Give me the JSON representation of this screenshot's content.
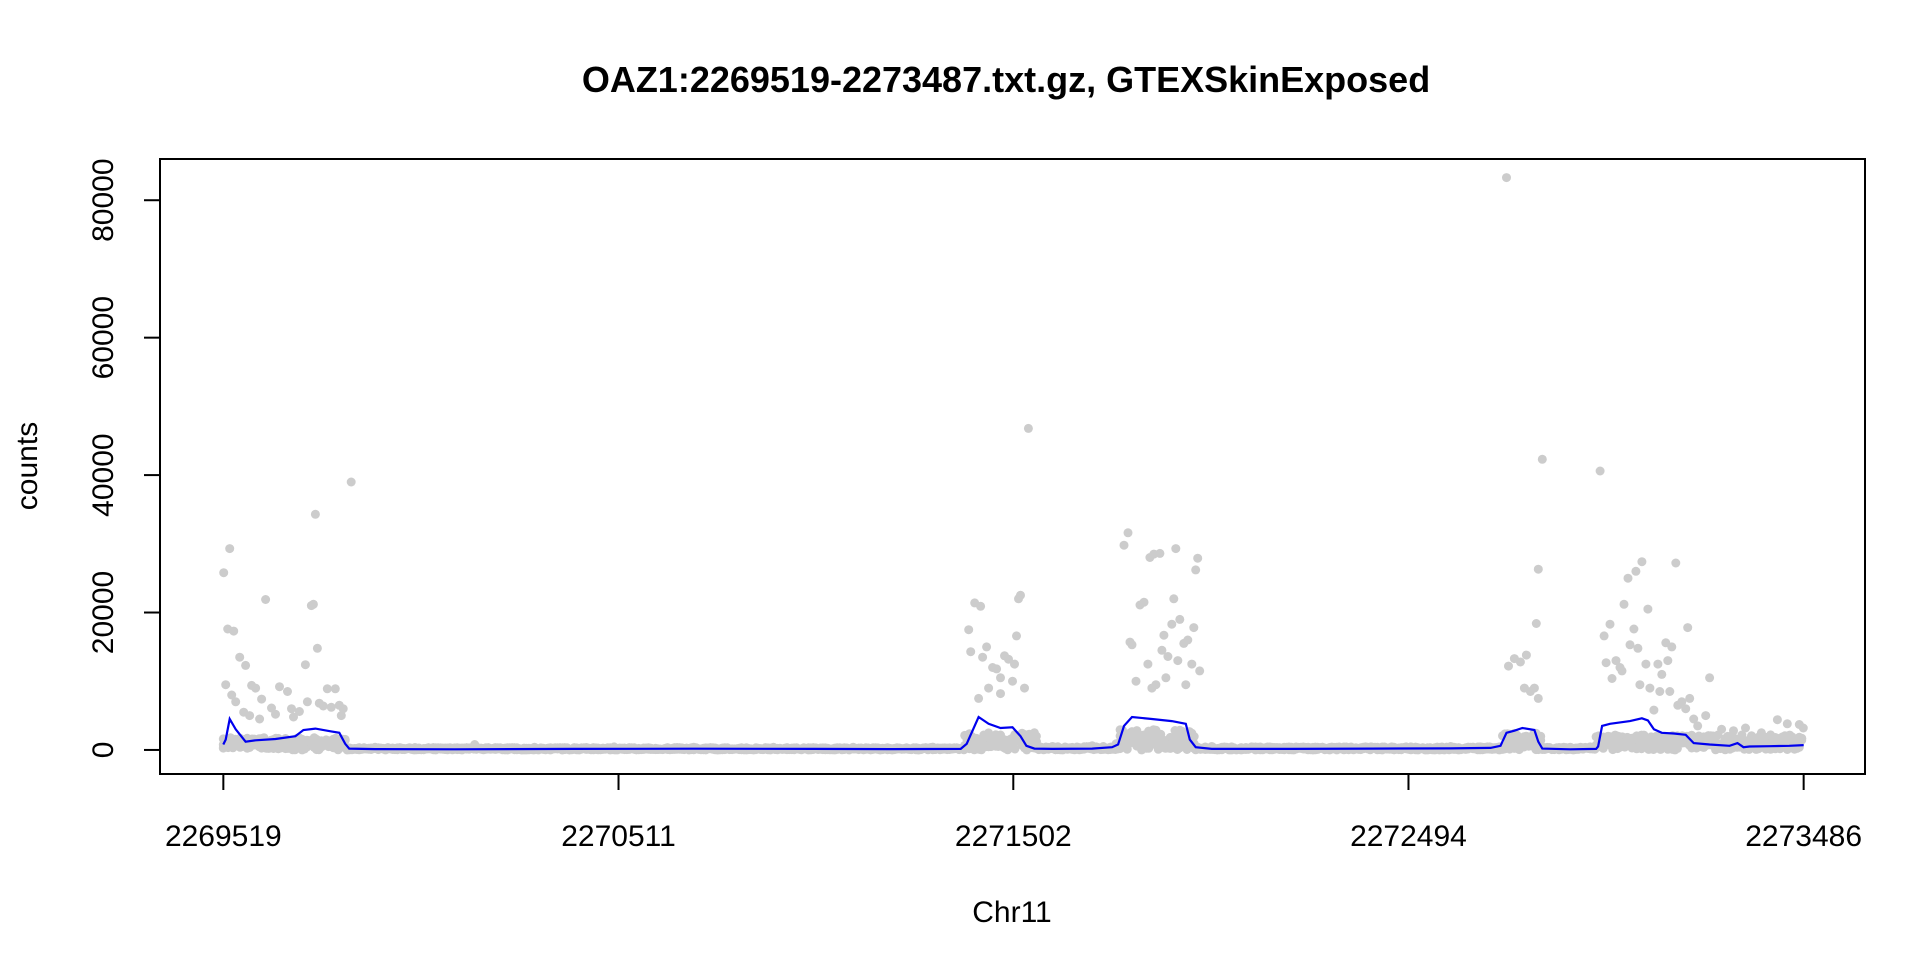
{
  "chart_data": {
    "type": "scatter",
    "title": "OAZ1:2269519-2273487.txt.gz, GTEXSkinExposed",
    "xlabel": "Chr11",
    "ylabel": "counts",
    "xlim": [
      2269360,
      2273640
    ],
    "ylim": [
      -3500,
      86000
    ],
    "x_ticks": [
      2269519,
      2270511,
      2271502,
      2272494,
      2273486
    ],
    "x_tick_labels": [
      "2269519",
      "2270511",
      "2271502",
      "2272494",
      "2273486"
    ],
    "y_ticks": [
      0,
      20000,
      40000,
      60000,
      80000
    ],
    "y_tick_labels": [
      "0",
      "20000",
      "40000",
      "60000",
      "80000"
    ],
    "grid": false,
    "colors": {
      "points": "#cccccc",
      "line": "#0000ee"
    },
    "series": [
      {
        "type": "scatter",
        "points": [
          [
            2269520,
            25800
          ],
          [
            2269535,
            29300
          ],
          [
            2269530,
            17600
          ],
          [
            2269545,
            17300
          ],
          [
            2269560,
            13500
          ],
          [
            2269575,
            12300
          ],
          [
            2269590,
            9400
          ],
          [
            2269600,
            9000
          ],
          [
            2269615,
            7400
          ],
          [
            2269625,
            21900
          ],
          [
            2269640,
            6100
          ],
          [
            2269660,
            9200
          ],
          [
            2269680,
            8500
          ],
          [
            2269695,
            4800
          ],
          [
            2269710,
            5600
          ],
          [
            2269725,
            12400
          ],
          [
            2269740,
            21000
          ],
          [
            2269745,
            21200
          ],
          [
            2269750,
            34300
          ],
          [
            2269755,
            14800
          ],
          [
            2269770,
            6400
          ],
          [
            2269780,
            8900
          ],
          [
            2269800,
            8900
          ],
          [
            2269810,
            6500
          ],
          [
            2269820,
            6000
          ],
          [
            2269840,
            39000
          ],
          [
            2269525,
            9500
          ],
          [
            2269540,
            8000
          ],
          [
            2269550,
            7000
          ],
          [
            2269570,
            5500
          ],
          [
            2269585,
            5000
          ],
          [
            2269610,
            4500
          ],
          [
            2269650,
            5200
          ],
          [
            2269690,
            6000
          ],
          [
            2269730,
            7000
          ],
          [
            2269760,
            6800
          ],
          [
            2269790,
            6200
          ],
          [
            2269815,
            5000
          ],
          [
            2269900,
            400
          ],
          [
            2270000,
            350
          ],
          [
            2270100,
            300
          ],
          [
            2270150,
            800
          ],
          [
            2270300,
            400
          ],
          [
            2270500,
            450
          ],
          [
            2270700,
            400
          ],
          [
            2270900,
            380
          ],
          [
            2271100,
            400
          ],
          [
            2271300,
            420
          ],
          [
            2271390,
            17500
          ],
          [
            2271395,
            14300
          ],
          [
            2271405,
            21400
          ],
          [
            2271420,
            20900
          ],
          [
            2271425,
            13500
          ],
          [
            2271435,
            15000
          ],
          [
            2271450,
            12000
          ],
          [
            2271460,
            11800
          ],
          [
            2271470,
            10500
          ],
          [
            2271480,
            13700
          ],
          [
            2271490,
            13200
          ],
          [
            2271500,
            10000
          ],
          [
            2271505,
            12500
          ],
          [
            2271510,
            16600
          ],
          [
            2271515,
            22000
          ],
          [
            2271520,
            22500
          ],
          [
            2271530,
            9000
          ],
          [
            2271540,
            46800
          ],
          [
            2271555,
            2500
          ],
          [
            2271470,
            8200
          ],
          [
            2271440,
            9000
          ],
          [
            2271415,
            7500
          ],
          [
            2271600,
            500
          ],
          [
            2271700,
            600
          ],
          [
            2271760,
            900
          ],
          [
            2271780,
            29800
          ],
          [
            2271790,
            31600
          ],
          [
            2271795,
            15700
          ],
          [
            2271800,
            15300
          ],
          [
            2271820,
            21100
          ],
          [
            2271830,
            21500
          ],
          [
            2271840,
            12500
          ],
          [
            2271845,
            28000
          ],
          [
            2271855,
            28500
          ],
          [
            2271860,
            9500
          ],
          [
            2271870,
            28600
          ],
          [
            2271875,
            14500
          ],
          [
            2271880,
            16700
          ],
          [
            2271890,
            13600
          ],
          [
            2271900,
            18300
          ],
          [
            2271905,
            22000
          ],
          [
            2271910,
            29300
          ],
          [
            2271915,
            13000
          ],
          [
            2271920,
            19000
          ],
          [
            2271930,
            15500
          ],
          [
            2271940,
            16000
          ],
          [
            2271950,
            12500
          ],
          [
            2271955,
            17800
          ],
          [
            2271960,
            26200
          ],
          [
            2271965,
            27900
          ],
          [
            2271970,
            11500
          ],
          [
            2271850,
            9000
          ],
          [
            2271810,
            10000
          ],
          [
            2271885,
            10500
          ],
          [
            2271935,
            9500
          ],
          [
            2272000,
            500
          ],
          [
            2272100,
            450
          ],
          [
            2272200,
            400
          ],
          [
            2272300,
            400
          ],
          [
            2272400,
            450
          ],
          [
            2272500,
            450
          ],
          [
            2272600,
            500
          ],
          [
            2272740,
            83300
          ],
          [
            2272745,
            12200
          ],
          [
            2272760,
            13300
          ],
          [
            2272775,
            12800
          ],
          [
            2272785,
            9000
          ],
          [
            2272790,
            13800
          ],
          [
            2272800,
            8500
          ],
          [
            2272810,
            9000
          ],
          [
            2272815,
            18400
          ],
          [
            2272820,
            26300
          ],
          [
            2272830,
            42300
          ],
          [
            2272820,
            7500
          ],
          [
            2272900,
            400
          ],
          [
            2272950,
            450
          ],
          [
            2272975,
            40600
          ],
          [
            2272985,
            16600
          ],
          [
            2272990,
            12700
          ],
          [
            2273000,
            18300
          ],
          [
            2273005,
            10400
          ],
          [
            2273015,
            13000
          ],
          [
            2273025,
            12000
          ],
          [
            2273030,
            11500
          ],
          [
            2273035,
            21200
          ],
          [
            2273045,
            25000
          ],
          [
            2273050,
            15300
          ],
          [
            2273060,
            17600
          ],
          [
            2273065,
            26000
          ],
          [
            2273070,
            14800
          ],
          [
            2273075,
            9500
          ],
          [
            2273080,
            27400
          ],
          [
            2273090,
            12500
          ],
          [
            2273095,
            20500
          ],
          [
            2273100,
            9000
          ],
          [
            2273110,
            5800
          ],
          [
            2273120,
            12500
          ],
          [
            2273125,
            8500
          ],
          [
            2273130,
            11000
          ],
          [
            2273140,
            15600
          ],
          [
            2273145,
            13000
          ],
          [
            2273150,
            8500
          ],
          [
            2273155,
            15000
          ],
          [
            2273165,
            27200
          ],
          [
            2273170,
            6500
          ],
          [
            2273180,
            7000
          ],
          [
            2273190,
            6000
          ],
          [
            2273195,
            17800
          ],
          [
            2273200,
            7500
          ],
          [
            2273210,
            4500
          ],
          [
            2273220,
            3500
          ],
          [
            2273240,
            5000
          ],
          [
            2273250,
            10500
          ],
          [
            2273280,
            3000
          ],
          [
            2273310,
            2800
          ],
          [
            2273340,
            3200
          ],
          [
            2273380,
            2500
          ],
          [
            2273420,
            4400
          ],
          [
            2273445,
            3800
          ],
          [
            2273475,
            3700
          ],
          [
            2273485,
            3200
          ]
        ]
      },
      {
        "type": "line",
        "points": [
          [
            2269519,
            800
          ],
          [
            2269525,
            1500
          ],
          [
            2269535,
            4500
          ],
          [
            2269550,
            3000
          ],
          [
            2269575,
            1200
          ],
          [
            2269600,
            1400
          ],
          [
            2269650,
            1600
          ],
          [
            2269700,
            2000
          ],
          [
            2269720,
            2900
          ],
          [
            2269750,
            3100
          ],
          [
            2269790,
            2700
          ],
          [
            2269810,
            2500
          ],
          [
            2269825,
            900
          ],
          [
            2269835,
            200
          ],
          [
            2269900,
            120
          ],
          [
            2270100,
            100
          ],
          [
            2270400,
            150
          ],
          [
            2270700,
            180
          ],
          [
            2271000,
            150
          ],
          [
            2271200,
            130
          ],
          [
            2271370,
            150
          ],
          [
            2271385,
            900
          ],
          [
            2271395,
            2200
          ],
          [
            2271415,
            4800
          ],
          [
            2271440,
            3800
          ],
          [
            2271470,
            3200
          ],
          [
            2271500,
            3300
          ],
          [
            2271520,
            2000
          ],
          [
            2271535,
            600
          ],
          [
            2271555,
            200
          ],
          [
            2271600,
            150
          ],
          [
            2271700,
            200
          ],
          [
            2271750,
            400
          ],
          [
            2271765,
            800
          ],
          [
            2271780,
            3500
          ],
          [
            2271800,
            4800
          ],
          [
            2271850,
            4500
          ],
          [
            2271900,
            4200
          ],
          [
            2271935,
            3800
          ],
          [
            2271945,
            1500
          ],
          [
            2271960,
            400
          ],
          [
            2272000,
            150
          ],
          [
            2272200,
            160
          ],
          [
            2272400,
            200
          ],
          [
            2272600,
            220
          ],
          [
            2272700,
            300
          ],
          [
            2272725,
            600
          ],
          [
            2272740,
            2500
          ],
          [
            2272760,
            2800
          ],
          [
            2272780,
            3200
          ],
          [
            2272810,
            2900
          ],
          [
            2272820,
            1200
          ],
          [
            2272830,
            200
          ],
          [
            2272900,
            100
          ],
          [
            2272965,
            150
          ],
          [
            2272970,
            500
          ],
          [
            2272980,
            3500
          ],
          [
            2273000,
            3800
          ],
          [
            2273050,
            4200
          ],
          [
            2273080,
            4600
          ],
          [
            2273095,
            4300
          ],
          [
            2273110,
            3000
          ],
          [
            2273130,
            2500
          ],
          [
            2273160,
            2400
          ],
          [
            2273190,
            2200
          ],
          [
            2273210,
            1000
          ],
          [
            2273250,
            800
          ],
          [
            2273300,
            600
          ],
          [
            2273320,
            1000
          ],
          [
            2273335,
            400
          ],
          [
            2273350,
            500
          ],
          [
            2273400,
            550
          ],
          [
            2273450,
            600
          ],
          [
            2273486,
            700
          ]
        ]
      }
    ]
  }
}
